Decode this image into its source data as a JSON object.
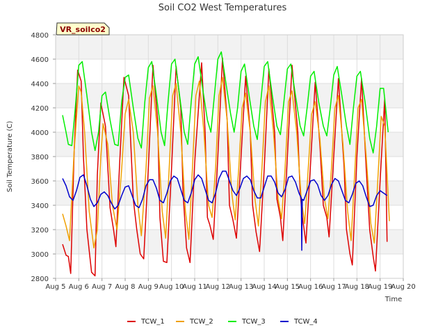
{
  "chart_data": {
    "type": "line",
    "title": "Soil CO2 West Temperatures",
    "xlabel": "Time",
    "ylabel": "Soil Temperature (C)",
    "badge": "VR_soilco2",
    "ylim": [
      2800,
      4800
    ],
    "yticks": [
      2800,
      3000,
      3200,
      3400,
      3600,
      3800,
      4000,
      4200,
      4400,
      4600,
      4800
    ],
    "xlim": [
      5,
      20
    ],
    "xticks": [
      {
        "x": 5,
        "label": "Aug 5"
      },
      {
        "x": 6,
        "label": "Aug 6"
      },
      {
        "x": 7,
        "label": "Aug 7"
      },
      {
        "x": 8,
        "label": "Aug 8"
      },
      {
        "x": 9,
        "label": "Aug 9"
      },
      {
        "x": 10,
        "label": "Aug 10"
      },
      {
        "x": 11,
        "label": "Aug 11"
      },
      {
        "x": 12,
        "label": "Aug 12"
      },
      {
        "x": 13,
        "label": "Aug 13"
      },
      {
        "x": 14,
        "label": "Aug 14"
      },
      {
        "x": 15,
        "label": "Aug 15"
      },
      {
        "x": 16,
        "label": "Aug 16"
      },
      {
        "x": 17,
        "label": "Aug 17"
      },
      {
        "x": 18,
        "label": "Aug 18"
      },
      {
        "x": 19,
        "label": "Aug 19"
      },
      {
        "x": 20,
        "label": "Aug 20"
      }
    ],
    "grid": true,
    "legend_position": "bottom",
    "series": [
      {
        "name": "TCW_1",
        "color": "#dd0000",
        "x": [
          5.3,
          5.45,
          5.55,
          5.65,
          5.8,
          5.95,
          6.1,
          6.2,
          6.35,
          6.55,
          6.7,
          6.8,
          6.95,
          7.15,
          7.35,
          7.5,
          7.6,
          7.75,
          7.95,
          8.15,
          8.35,
          8.5,
          8.65,
          8.8,
          9.0,
          9.2,
          9.4,
          9.5,
          9.65,
          9.8,
          10.0,
          10.2,
          10.4,
          10.5,
          10.65,
          10.8,
          11.0,
          11.3,
          11.45,
          11.55,
          11.65,
          11.8,
          12.0,
          12.2,
          12.4,
          12.5,
          12.65,
          12.8,
          13.0,
          13.2,
          13.4,
          13.5,
          13.65,
          13.8,
          14.0,
          14.2,
          14.45,
          14.55,
          14.7,
          14.8,
          15.0,
          15.2,
          15.45,
          15.55,
          15.65,
          15.8,
          16.0,
          16.2,
          16.4,
          16.55,
          16.7,
          16.8,
          17.0,
          17.2,
          17.45,
          17.55,
          17.7,
          17.8,
          18.0,
          18.2,
          18.4,
          18.55,
          18.7,
          18.8,
          19.0,
          19.2,
          19.3
        ],
        "values": [
          3080,
          2990,
          2980,
          2840,
          3850,
          4510,
          4420,
          3800,
          3200,
          2850,
          2820,
          3650,
          4240,
          4050,
          3380,
          3200,
          3060,
          3700,
          4450,
          4300,
          3450,
          3200,
          3000,
          2960,
          3700,
          4550,
          4100,
          3300,
          2940,
          2930,
          3700,
          4540,
          4200,
          3500,
          3050,
          2930,
          3750,
          4570,
          4000,
          3300,
          3240,
          3120,
          3800,
          4610,
          4100,
          3400,
          3280,
          3130,
          3800,
          4460,
          4000,
          3400,
          3180,
          3020,
          3700,
          4520,
          4000,
          3450,
          3300,
          3110,
          3800,
          4550,
          4000,
          3500,
          3300,
          3090,
          3750,
          4410,
          3900,
          3400,
          3300,
          3140,
          3800,
          4440,
          3700,
          3200,
          3000,
          2910,
          3800,
          4440,
          3700,
          3200,
          2980,
          2860,
          3600,
          4280,
          3100
        ]
      },
      {
        "name": "TCW_2",
        "color": "#f0a000",
        "x": [
          5.3,
          5.45,
          5.6,
          5.8,
          6.0,
          6.1,
          6.25,
          6.45,
          6.65,
          6.8,
          6.95,
          7.05,
          7.25,
          7.45,
          7.65,
          7.85,
          8.0,
          8.15,
          8.35,
          8.55,
          8.7,
          8.9,
          9.05,
          9.2,
          9.4,
          9.6,
          9.75,
          9.9,
          10.05,
          10.2,
          10.4,
          10.6,
          10.75,
          10.9,
          11.05,
          11.2,
          11.4,
          11.6,
          11.75,
          11.9,
          12.05,
          12.2,
          12.4,
          12.6,
          12.75,
          12.9,
          13.05,
          13.2,
          13.4,
          13.6,
          13.75,
          13.9,
          14.05,
          14.2,
          14.4,
          14.6,
          14.75,
          14.9,
          15.05,
          15.2,
          15.4,
          15.6,
          15.75,
          15.9,
          16.05,
          16.2,
          16.4,
          16.6,
          16.75,
          16.9,
          17.05,
          17.2,
          17.4,
          17.6,
          17.75,
          17.9,
          18.05,
          18.2,
          18.4,
          18.6,
          18.75,
          18.9,
          19.05,
          19.2,
          19.4
        ],
        "values": [
          3330,
          3230,
          3110,
          3850,
          4380,
          4330,
          4000,
          3350,
          3050,
          3200,
          3800,
          4070,
          3900,
          3400,
          3200,
          3700,
          4150,
          4270,
          4000,
          3400,
          3150,
          3700,
          4280,
          4380,
          4000,
          3350,
          3130,
          3700,
          4300,
          4400,
          4000,
          3350,
          3120,
          3700,
          4300,
          4420,
          4000,
          3400,
          3300,
          3700,
          4300,
          4450,
          4100,
          3500,
          3280,
          3700,
          4200,
          4320,
          4000,
          3450,
          3230,
          3700,
          4250,
          4380,
          4000,
          3450,
          3290,
          3700,
          4250,
          4340,
          4000,
          3450,
          3250,
          3700,
          4150,
          4250,
          3950,
          3450,
          3290,
          3700,
          4200,
          4300,
          3900,
          3350,
          3110,
          3650,
          4200,
          4270,
          3800,
          3250,
          3090,
          3600,
          4130,
          4050,
          3270
        ]
      },
      {
        "name": "TCW_3",
        "color": "#00ee00",
        "x": [
          5.3,
          5.45,
          5.55,
          5.7,
          5.85,
          6.0,
          6.15,
          6.35,
          6.55,
          6.7,
          6.85,
          7.0,
          7.15,
          7.35,
          7.55,
          7.7,
          7.85,
          8.0,
          8.15,
          8.35,
          8.55,
          8.7,
          8.85,
          9.0,
          9.15,
          9.35,
          9.55,
          9.7,
          9.85,
          10.0,
          10.15,
          10.35,
          10.55,
          10.7,
          10.85,
          11.0,
          11.15,
          11.35,
          11.55,
          11.7,
          11.85,
          12.0,
          12.15,
          12.35,
          12.55,
          12.7,
          12.85,
          13.0,
          13.15,
          13.35,
          13.55,
          13.7,
          13.85,
          14.0,
          14.15,
          14.35,
          14.55,
          14.7,
          14.85,
          15.0,
          15.15,
          15.35,
          15.55,
          15.7,
          15.85,
          16.0,
          16.15,
          16.35,
          16.55,
          16.7,
          16.85,
          17.0,
          17.15,
          17.35,
          17.55,
          17.7,
          17.85,
          18.0,
          18.15,
          18.35,
          18.55,
          18.7,
          18.85,
          19.0,
          19.15,
          19.35
        ],
        "values": [
          4140,
          4000,
          3900,
          3890,
          4200,
          4550,
          4580,
          4300,
          4000,
          3850,
          4000,
          4300,
          4330,
          4100,
          3900,
          3890,
          4250,
          4450,
          4470,
          4200,
          3950,
          3870,
          4250,
          4530,
          4580,
          4300,
          4000,
          3890,
          4250,
          4560,
          4600,
          4300,
          4000,
          3900,
          4250,
          4560,
          4620,
          4350,
          4100,
          4000,
          4300,
          4600,
          4660,
          4400,
          4150,
          4000,
          4200,
          4500,
          4560,
          4300,
          4050,
          3940,
          4250,
          4540,
          4580,
          4300,
          4050,
          3980,
          4250,
          4520,
          4560,
          4300,
          4050,
          3970,
          4200,
          4460,
          4500,
          4250,
          4050,
          3970,
          4200,
          4470,
          4540,
          4300,
          4050,
          3900,
          4200,
          4460,
          4500,
          4250,
          3950,
          3830,
          4050,
          4360,
          4360,
          4000
        ]
      },
      {
        "name": "TCW_4",
        "color": "#0000cc",
        "x": [
          5.3,
          5.45,
          5.6,
          5.75,
          5.9,
          6.05,
          6.2,
          6.35,
          6.5,
          6.65,
          6.8,
          6.95,
          7.1,
          7.25,
          7.4,
          7.55,
          7.7,
          7.85,
          8.0,
          8.15,
          8.3,
          8.45,
          8.6,
          8.75,
          8.9,
          9.05,
          9.2,
          9.35,
          9.5,
          9.65,
          9.8,
          9.95,
          10.1,
          10.25,
          10.4,
          10.55,
          10.7,
          10.85,
          11.0,
          11.15,
          11.3,
          11.45,
          11.6,
          11.75,
          11.9,
          12.05,
          12.2,
          12.35,
          12.5,
          12.65,
          12.8,
          12.95,
          13.1,
          13.25,
          13.4,
          13.55,
          13.7,
          13.85,
          14.0,
          14.15,
          14.3,
          14.45,
          14.6,
          14.75,
          14.9,
          15.05,
          15.2,
          15.35,
          15.5,
          15.6,
          15.62,
          15.64,
          15.7,
          15.85,
          16.0,
          16.15,
          16.3,
          16.45,
          16.6,
          16.75,
          16.9,
          17.05,
          17.2,
          17.35,
          17.5,
          17.65,
          17.8,
          17.95,
          18.1,
          18.25,
          18.4,
          18.55,
          18.7,
          18.85,
          19.0,
          19.15,
          19.3
        ],
        "values": [
          3620,
          3560,
          3470,
          3440,
          3520,
          3630,
          3650,
          3560,
          3450,
          3390,
          3420,
          3490,
          3510,
          3480,
          3420,
          3370,
          3400,
          3480,
          3550,
          3560,
          3480,
          3400,
          3380,
          3450,
          3560,
          3610,
          3610,
          3540,
          3440,
          3420,
          3500,
          3600,
          3640,
          3620,
          3530,
          3440,
          3420,
          3500,
          3610,
          3650,
          3620,
          3530,
          3440,
          3420,
          3500,
          3620,
          3680,
          3680,
          3600,
          3520,
          3480,
          3540,
          3620,
          3640,
          3610,
          3520,
          3460,
          3460,
          3550,
          3640,
          3640,
          3590,
          3500,
          3470,
          3530,
          3630,
          3640,
          3590,
          3500,
          3460,
          3030,
          3450,
          3440,
          3520,
          3600,
          3610,
          3570,
          3480,
          3440,
          3480,
          3570,
          3620,
          3600,
          3520,
          3440,
          3420,
          3490,
          3580,
          3600,
          3560,
          3470,
          3390,
          3400,
          3480,
          3520,
          3500,
          3480
        ]
      }
    ]
  }
}
